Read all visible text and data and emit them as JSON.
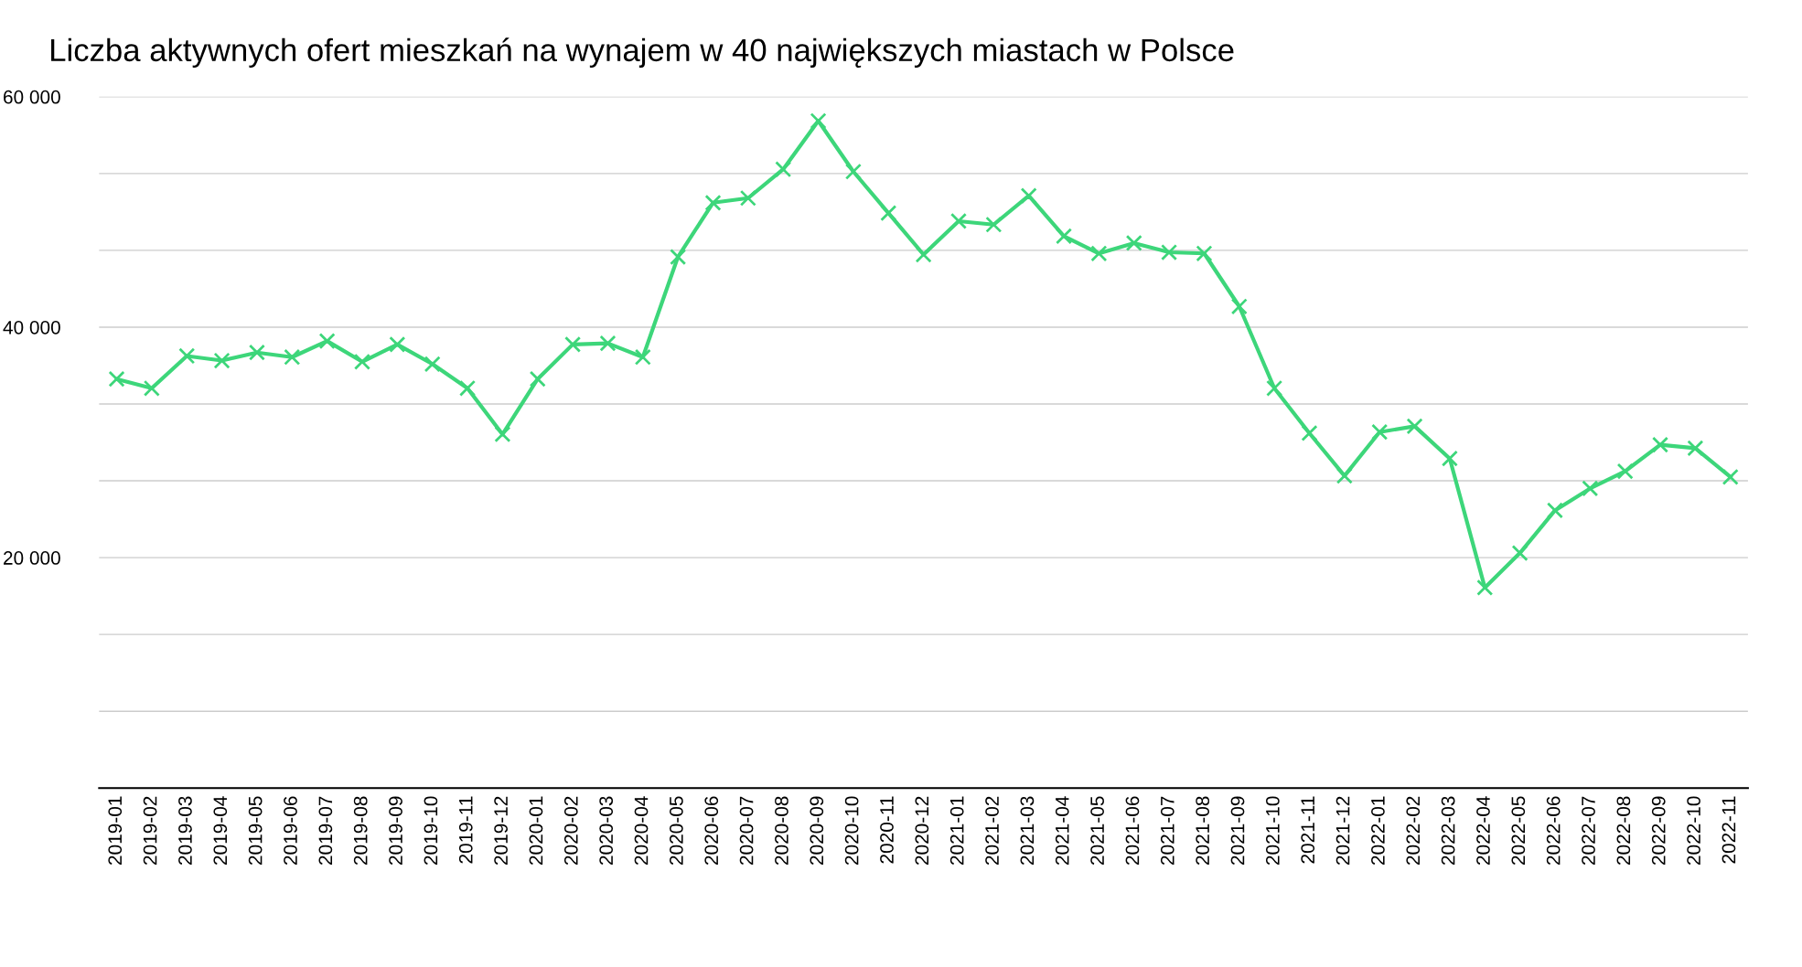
{
  "chart_data": {
    "type": "line",
    "title": "Liczba aktywnych ofert mieszkań na wynajem w 40 największych miastach w Polsce",
    "categories": [
      "2019-01",
      "2019-02",
      "2019-03",
      "2019-04",
      "2019-05",
      "2019-06",
      "2019-07",
      "2019-08",
      "2019-09",
      "2019-10",
      "2019-11",
      "2019-12",
      "2020-01",
      "2020-02",
      "2020-03",
      "2020-04",
      "2020-05",
      "2020-06",
      "2020-07",
      "2020-08",
      "2020-09",
      "2020-10",
      "2020-11",
      "2020-12",
      "2021-01",
      "2021-02",
      "2021-03",
      "2021-04",
      "2021-05",
      "2021-06",
      "2021-07",
      "2021-08",
      "2021-09",
      "2021-10",
      "2021-11",
      "2021-12",
      "2022-01",
      "2022-02",
      "2022-03",
      "2022-04",
      "2022-05",
      "2022-06",
      "2022-07",
      "2022-08",
      "2022-09",
      "2022-10",
      "2022-11"
    ],
    "series": [
      {
        "color": "#3dd67a",
        "values": [
          35500,
          34700,
          37500,
          37100,
          37800,
          37400,
          38800,
          37000,
          38500,
          36800,
          34700,
          30700,
          35500,
          38500,
          38600,
          37400,
          46100,
          50800,
          51200,
          53700,
          57900,
          53500,
          49900,
          46300,
          49200,
          48900,
          51400,
          47900,
          46400,
          47300,
          46500,
          46400,
          41800,
          34700,
          30800,
          27100,
          30900,
          31400,
          28600,
          17400,
          20400,
          24100,
          26000,
          27500,
          29800,
          29500,
          27000
        ]
      }
    ],
    "ylim": [
      0,
      60000
    ],
    "yticks": [
      {
        "value": 0,
        "label": null
      },
      {
        "value": 6667,
        "label": null
      },
      {
        "value": 13333,
        "label": null
      },
      {
        "value": 20000,
        "label": "20 000"
      },
      {
        "value": 26667,
        "label": null
      },
      {
        "value": 33333,
        "label": null
      },
      {
        "value": 40000,
        "label": "40 000"
      },
      {
        "value": 46667,
        "label": null
      },
      {
        "value": 53333,
        "label": null
      },
      {
        "value": 60000,
        "label": "60 000"
      }
    ],
    "grid": "y",
    "marker": "cross",
    "line_style": "solid"
  }
}
